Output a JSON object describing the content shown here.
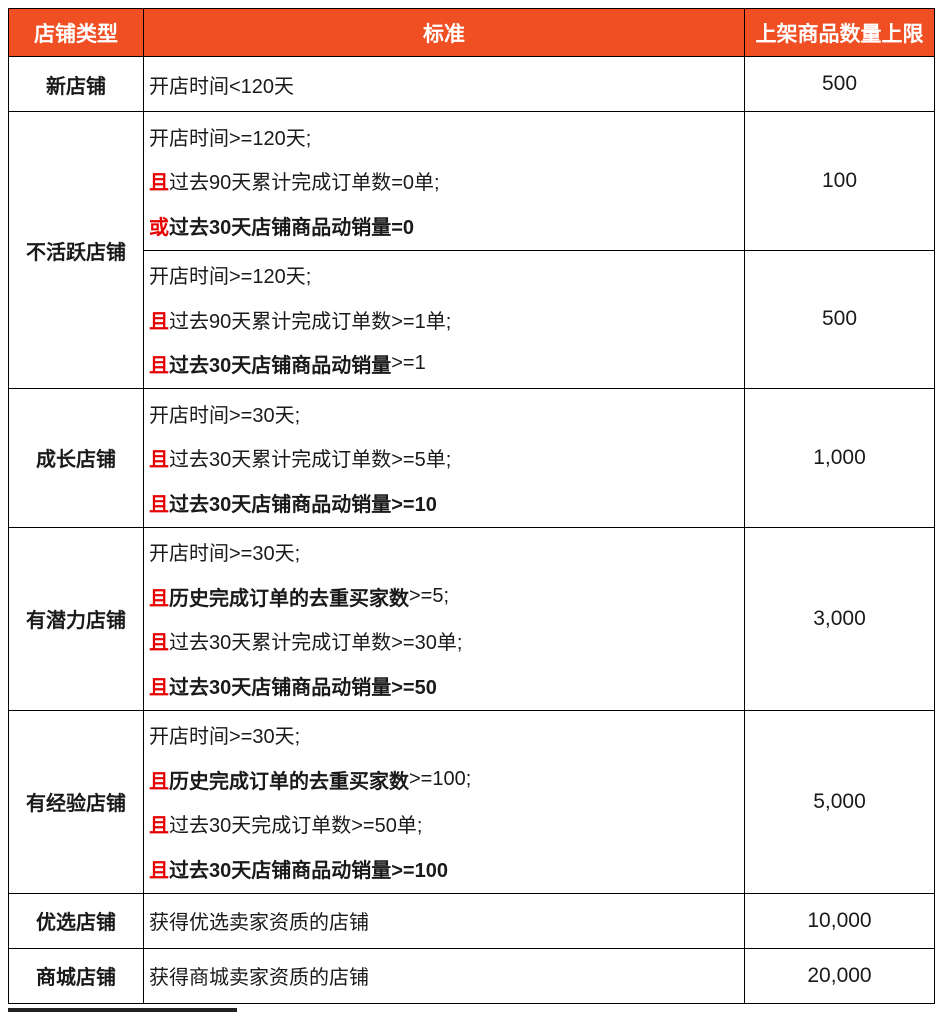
{
  "table": {
    "headers": [
      "店铺类型",
      "标准",
      "上架商品数量上限"
    ],
    "colors": {
      "header_bg": "#f04e23",
      "header_text": "#ffffff",
      "emphasis_red": "#e60000",
      "border": "#000000",
      "body_text": "#1a1a1a"
    },
    "groups": [
      {
        "type": "新店铺",
        "cells": [
          {
            "limit": "500",
            "lines": [
              [
                {
                  "t": "开店时间<120天",
                  "s": "n"
                }
              ]
            ]
          }
        ]
      },
      {
        "type": "不活跃店铺",
        "cells": [
          {
            "limit": "100",
            "lines": [
              [
                {
                  "t": "开店时间>=120天;",
                  "s": "n"
                }
              ],
              [
                {
                  "t": "且",
                  "s": "rb"
                },
                {
                  "t": "过去90天累计完成订单数=0单;",
                  "s": "n"
                }
              ],
              [
                {
                  "t": "或",
                  "s": "rb"
                },
                {
                  "t": "过去30天店铺商品动销量=0",
                  "s": "b"
                }
              ]
            ]
          },
          {
            "limit": "500",
            "lines": [
              [
                {
                  "t": "开店时间>=120天;",
                  "s": "n"
                }
              ],
              [
                {
                  "t": "且",
                  "s": "rb"
                },
                {
                  "t": "过去90天累计完成订单数>=1单;",
                  "s": "n"
                }
              ],
              [
                {
                  "t": "且",
                  "s": "rb"
                },
                {
                  "t": "过去30天店铺商品动销量",
                  "s": "b"
                },
                {
                  "t": ">=1",
                  "s": "n"
                }
              ]
            ]
          }
        ]
      },
      {
        "type": "成长店铺",
        "cells": [
          {
            "limit": "1,000",
            "lines": [
              [
                {
                  "t": "开店时间>=30天;",
                  "s": "n"
                }
              ],
              [
                {
                  "t": "且",
                  "s": "rb"
                },
                {
                  "t": "过去30天累计完成订单数>=5单;",
                  "s": "n"
                }
              ],
              [
                {
                  "t": "且",
                  "s": "rb"
                },
                {
                  "t": "过去30天店铺商品动销量>=10",
                  "s": "b"
                }
              ]
            ]
          }
        ]
      },
      {
        "type": "有潜力店铺",
        "cells": [
          {
            "limit": "3,000",
            "lines": [
              [
                {
                  "t": "开店时间>=30天;",
                  "s": "n"
                }
              ],
              [
                {
                  "t": "且",
                  "s": "rb"
                },
                {
                  "t": "历史完成订单的去重买家数",
                  "s": "b"
                },
                {
                  "t": ">=5;",
                  "s": "n"
                }
              ],
              [
                {
                  "t": "且",
                  "s": "rb"
                },
                {
                  "t": "过去30天累计完成订单数>=30单;",
                  "s": "n"
                }
              ],
              [
                {
                  "t": "且",
                  "s": "rb"
                },
                {
                  "t": "过去30天店铺商品动销量>=50",
                  "s": "b"
                }
              ]
            ]
          }
        ]
      },
      {
        "type": "有经验店铺",
        "cells": [
          {
            "limit": "5,000",
            "lines": [
              [
                {
                  "t": "开店时间>=30天;",
                  "s": "n"
                }
              ],
              [
                {
                  "t": "且",
                  "s": "rb"
                },
                {
                  "t": "历史完成订单的去重买家数",
                  "s": "b"
                },
                {
                  "t": ">=100;",
                  "s": "n"
                }
              ],
              [
                {
                  "t": "且",
                  "s": "rb"
                },
                {
                  "t": "过去30天完成订单数>=50单;",
                  "s": "n"
                }
              ],
              [
                {
                  "t": "且",
                  "s": "rb"
                },
                {
                  "t": "过去30天店铺商品动销量>=100",
                  "s": "b"
                }
              ]
            ]
          }
        ]
      },
      {
        "type": "优选店铺",
        "cells": [
          {
            "limit": "10,000",
            "lines": [
              [
                {
                  "t": "获得优选卖家资质的店铺",
                  "s": "n"
                }
              ]
            ]
          }
        ]
      },
      {
        "type": "商城店铺",
        "cells": [
          {
            "limit": "20,000",
            "lines": [
              [
                {
                  "t": "获得商城卖家资质的店铺",
                  "s": "n"
                }
              ]
            ]
          }
        ]
      }
    ]
  }
}
